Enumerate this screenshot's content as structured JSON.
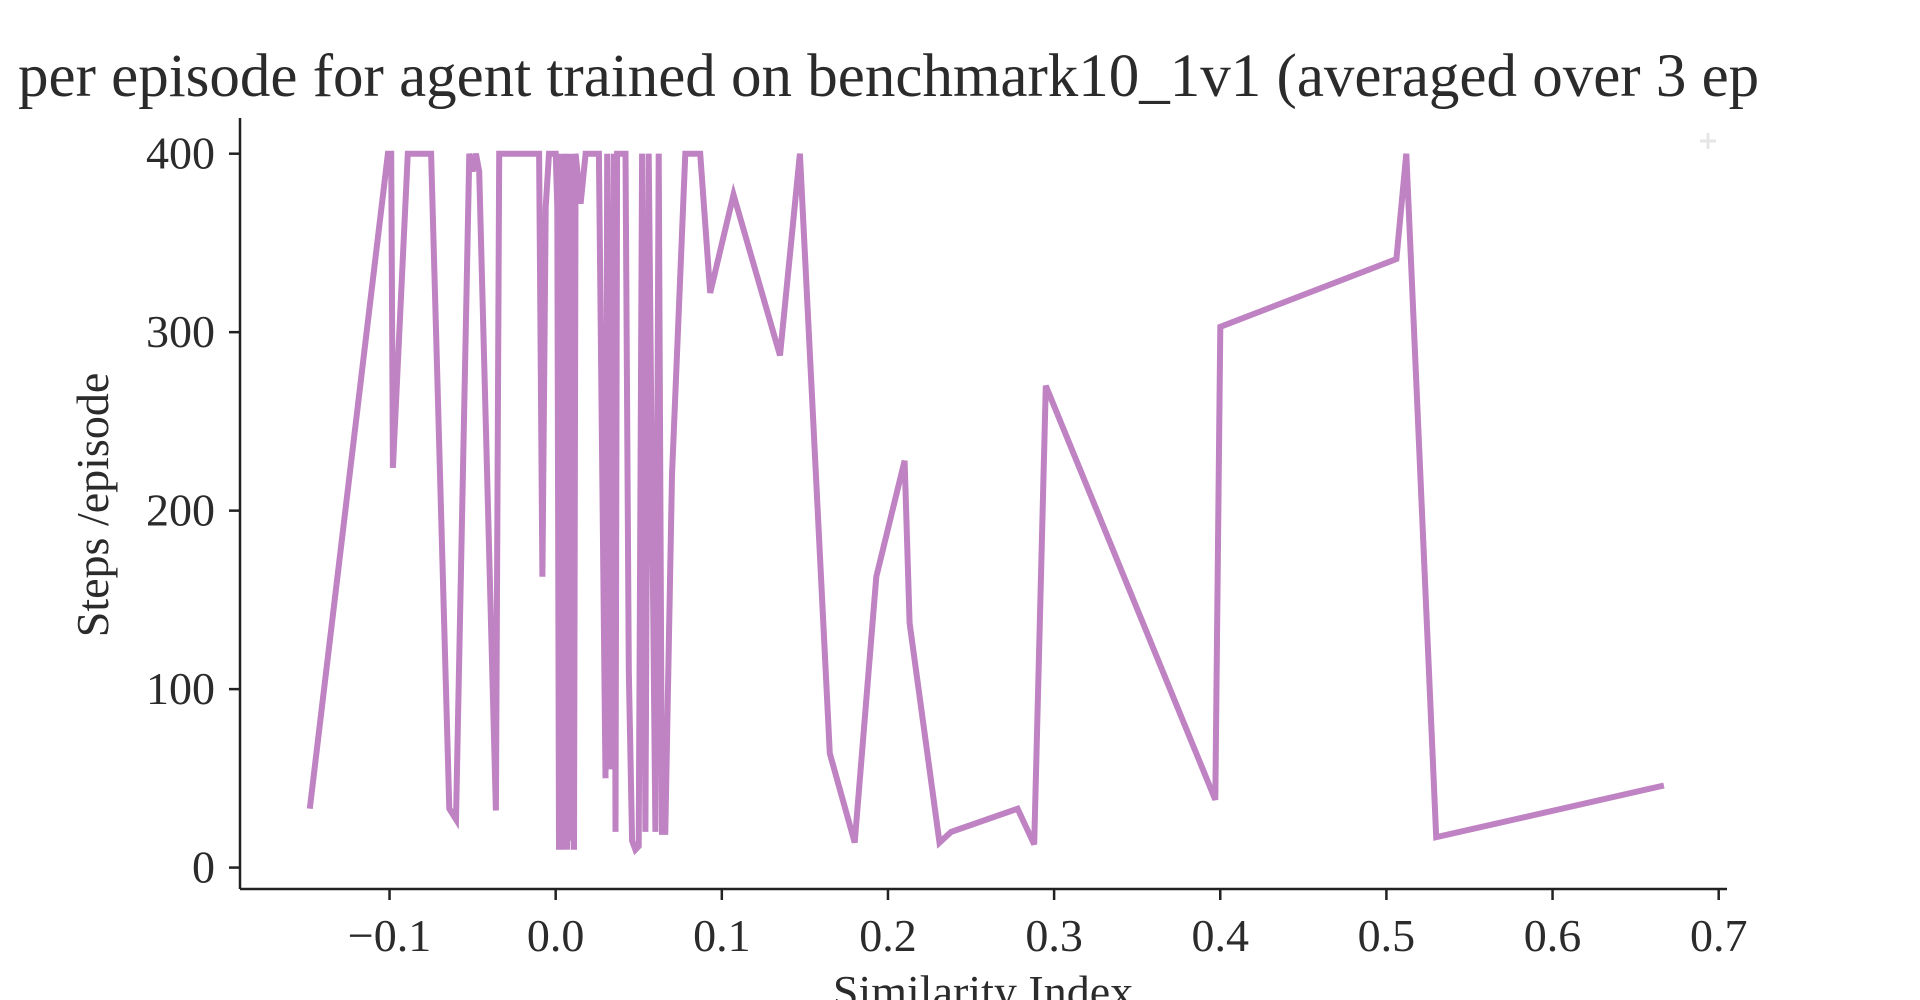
{
  "chart_data": {
    "type": "line",
    "title": "per episode for agent trained on benchmark10_1v1 (averaged over 3 ep",
    "xlabel": "Similarity Index",
    "ylabel": "Steps /episode",
    "xlim": [
      -0.19,
      0.705
    ],
    "ylim": [
      -12,
      420
    ],
    "x_ticks": [
      -0.1,
      0.0,
      0.1,
      0.2,
      0.3,
      0.4,
      0.5,
      0.6,
      0.7
    ],
    "x_tick_labels": [
      "−0.1",
      "0.0",
      "0.1",
      "0.2",
      "0.3",
      "0.4",
      "0.5",
      "0.6",
      "0.7"
    ],
    "y_ticks": [
      0,
      100,
      200,
      300,
      400
    ],
    "y_tick_labels": [
      "0",
      "100",
      "200",
      "300",
      "400"
    ],
    "grid": false,
    "line_color": "#bf82c2",
    "axis_color": "#222222",
    "series": [
      {
        "x": [
          -0.148,
          -0.101,
          -0.099,
          -0.098,
          -0.089,
          -0.085,
          -0.075,
          -0.064,
          -0.06,
          -0.052,
          -0.05,
          -0.048,
          -0.046,
          -0.036,
          -0.034,
          -0.013,
          -0.01,
          -0.008,
          -0.006,
          -0.004,
          0.0,
          0.001,
          0.002,
          0.003,
          0.004,
          0.005,
          0.007,
          0.008,
          0.009,
          0.01,
          0.011,
          0.012,
          0.015,
          0.018,
          0.02,
          0.022,
          0.026,
          0.03,
          0.031,
          0.033,
          0.035,
          0.036,
          0.037,
          0.04,
          0.042,
          0.044,
          0.046,
          0.048,
          0.05,
          0.052,
          0.054,
          0.056,
          0.06,
          0.062,
          0.064,
          0.066,
          0.07,
          0.078,
          0.087,
          0.093,
          0.107,
          0.135,
          0.147,
          0.165,
          0.18,
          0.193,
          0.21,
          0.213,
          0.231,
          0.238,
          0.278,
          0.288,
          0.295,
          0.397,
          0.4,
          0.506,
          0.512,
          0.53,
          0.667
        ],
        "y": [
          33,
          400,
          400,
          224,
          400,
          400,
          400,
          33,
          27,
          400,
          390,
          400,
          390,
          32,
          400,
          400,
          400,
          163,
          370,
          400,
          400,
          370,
          10,
          400,
          10,
          400,
          10,
          400,
          15,
          400,
          10,
          400,
          372,
          400,
          400,
          400,
          400,
          50,
          400,
          55,
          400,
          20,
          400,
          400,
          400,
          110,
          15,
          10,
          12,
          400,
          20,
          400,
          20,
          400,
          20,
          20,
          220,
          400,
          400,
          322,
          377,
          287,
          400,
          64,
          14,
          163,
          228,
          137,
          14,
          20,
          33,
          13,
          270,
          38,
          303,
          341,
          400,
          17,
          46
        ]
      }
    ]
  }
}
